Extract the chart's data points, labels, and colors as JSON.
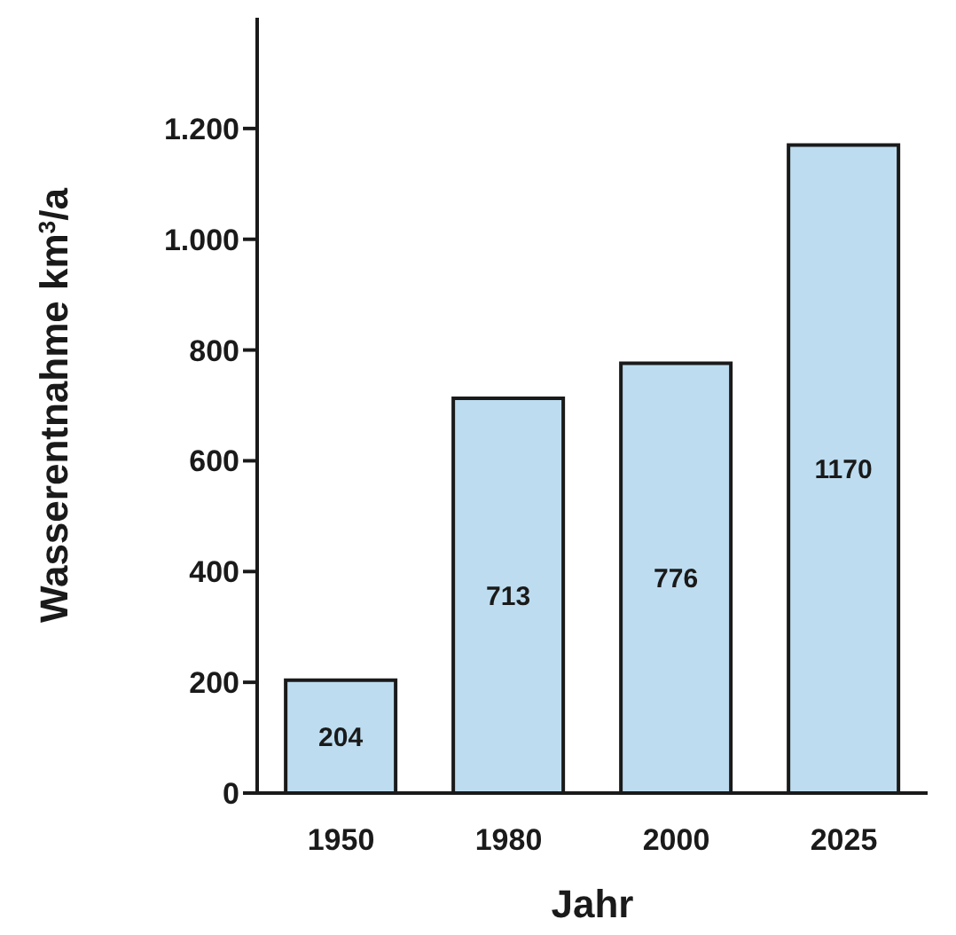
{
  "chart_data": {
    "type": "bar",
    "xlabel": "Jahr",
    "ylabel": "Wasserentnahme km$^{3}$/a",
    "categories": [
      "1950",
      "1980",
      "2000",
      "2025"
    ],
    "values": [
      204,
      713,
      776,
      1170
    ],
    "color": "#bddcf0",
    "ylim": [
      0,
      1400
    ],
    "yticks": [
      0,
      200,
      400,
      600,
      800,
      {
        "value": 1000,
        "label": "1.000"
      },
      {
        "value": 1200,
        "label": "1.200"
      }
    ],
    "data_labels": true
  }
}
